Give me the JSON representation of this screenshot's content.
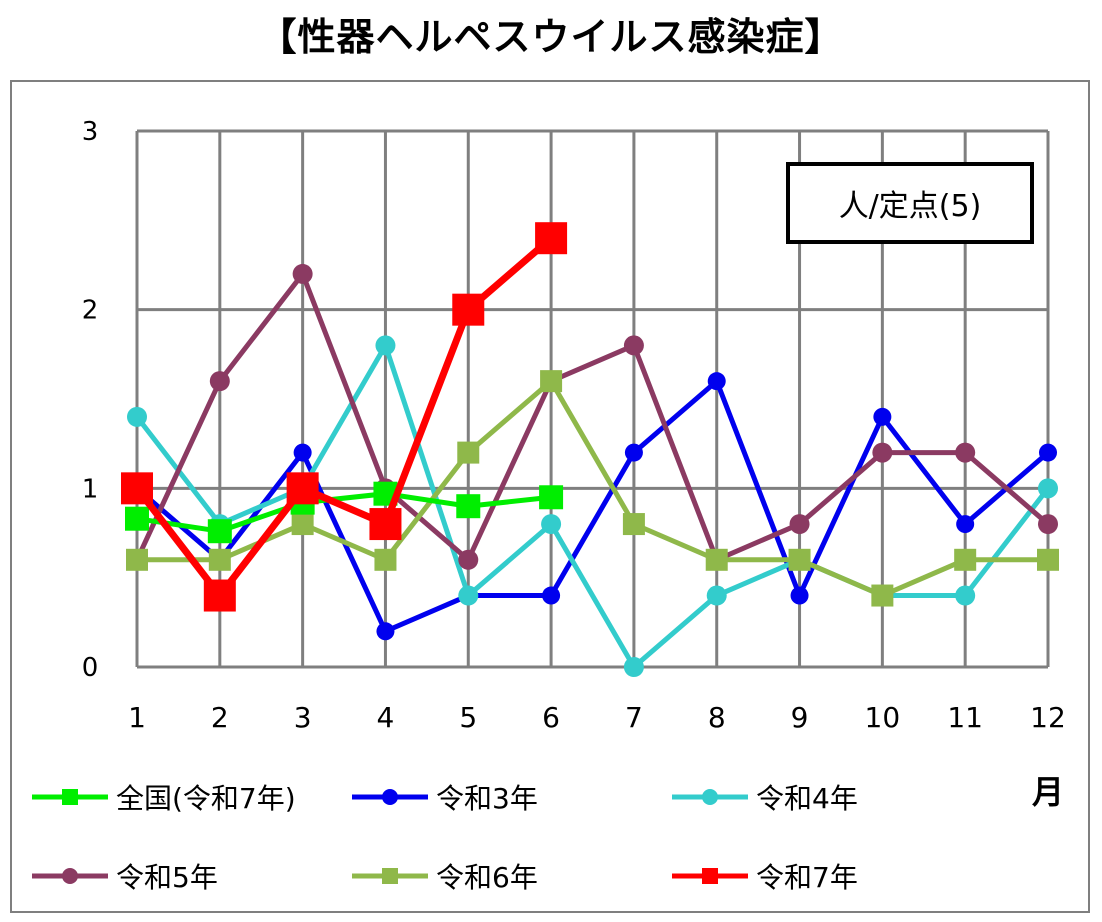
{
  "title": "【性器ヘルペスウイルス感染症】",
  "unit_label": "人/定点(5)",
  "colors": {
    "national": "#00ee00",
    "r3": "#0000ee",
    "r4": "#33cccc",
    "r5": "#8b3a62",
    "r6": "#8fb84a",
    "r7": "#ff0000",
    "grid": "#7f7f7f"
  },
  "chart_data": {
    "type": "line",
    "xlabel": "月",
    "ylabel": "",
    "x": [
      1,
      2,
      3,
      4,
      5,
      6,
      7,
      8,
      9,
      10,
      11,
      12
    ],
    "x_tick_labels": [
      "1",
      "2",
      "3",
      "4",
      "5",
      "6",
      "7",
      "8",
      "9",
      "10",
      "11",
      "12"
    ],
    "ylim": [
      0,
      3
    ],
    "y_tick_labels": [
      "0",
      "1",
      "2",
      "3"
    ],
    "grid": true,
    "legend_position": "bottom",
    "series": [
      {
        "key": "r3",
        "name": "令和3年",
        "marker": "circle",
        "values": [
          1.0,
          0.6,
          1.2,
          0.2,
          0.4,
          0.4,
          1.2,
          1.6,
          0.4,
          1.4,
          0.8,
          1.2
        ]
      },
      {
        "key": "r4",
        "name": "令和4年",
        "marker": "circle",
        "values": [
          1.4,
          0.8,
          1.0,
          1.8,
          0.4,
          0.8,
          0.0,
          0.4,
          0.6,
          0.4,
          0.4,
          1.0
        ]
      },
      {
        "key": "r5",
        "name": "令和5年",
        "marker": "circle",
        "values": [
          0.6,
          1.6,
          2.2,
          1.0,
          0.6,
          1.6,
          1.8,
          0.6,
          0.8,
          1.2,
          1.2,
          0.8
        ]
      },
      {
        "key": "r6",
        "name": "令和6年",
        "marker": "square",
        "values": [
          0.6,
          0.6,
          0.8,
          0.6,
          1.2,
          1.6,
          0.8,
          0.6,
          0.6,
          0.4,
          0.6,
          0.6
        ]
      },
      {
        "key": "national",
        "name": "全国(令和7年)",
        "marker": "square",
        "values": [
          0.83,
          0.76,
          0.92,
          0.97,
          0.9,
          0.95,
          null,
          null,
          null,
          null,
          null,
          null
        ]
      },
      {
        "key": "r7",
        "name": "令和7年",
        "marker": "square",
        "values": [
          1.0,
          0.4,
          1.0,
          0.8,
          2.0,
          2.4,
          null,
          null,
          null,
          null,
          null,
          null
        ]
      }
    ],
    "legend_order": [
      "national",
      "r3",
      "r4",
      "r5",
      "r6",
      "r7"
    ]
  }
}
